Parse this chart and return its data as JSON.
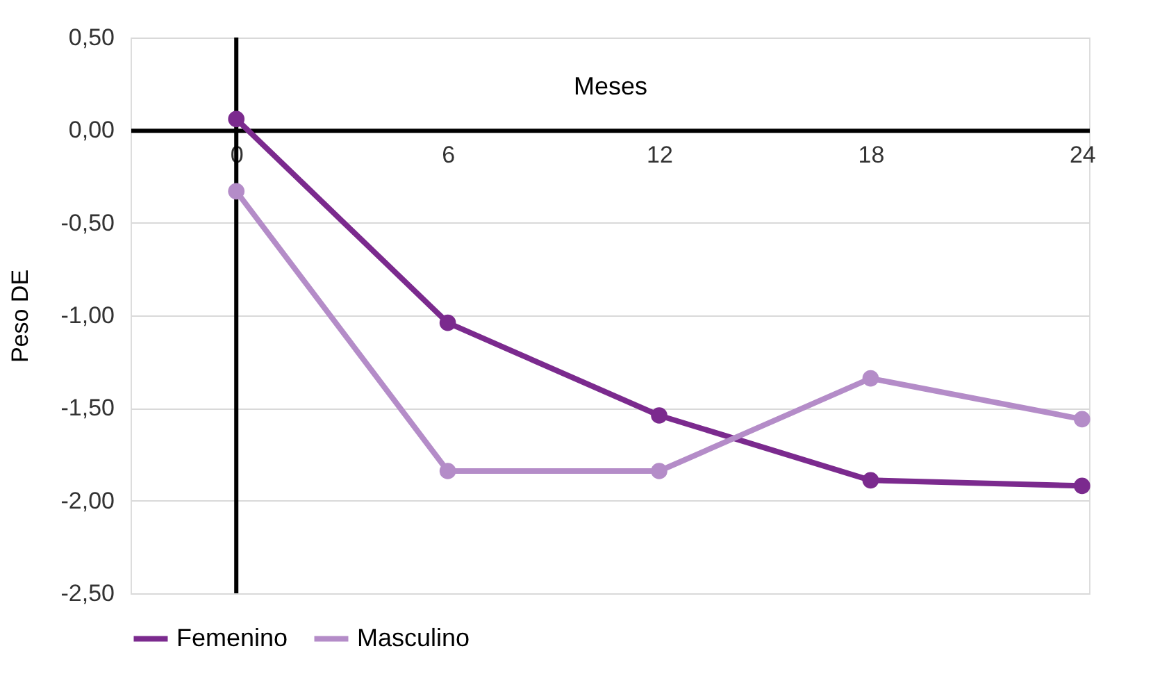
{
  "chart_data": {
    "type": "line",
    "xlabel": "Meses",
    "ylabel": "Peso DE",
    "x": [
      0,
      6,
      12,
      18,
      24
    ],
    "xlim": [
      -3,
      24.2
    ],
    "xticks": [
      0,
      6,
      12,
      18,
      24
    ],
    "ylim": [
      -2.5,
      0.5
    ],
    "yticks": [
      {
        "value": 0.5,
        "label": "0,50"
      },
      {
        "value": 0,
        "label": "0,00"
      },
      {
        "value": -0.5,
        "label": "-0,50"
      },
      {
        "value": -1,
        "label": "-1,00"
      },
      {
        "value": -1.5,
        "label": "-1,50"
      },
      {
        "value": -2,
        "label": "-2,00"
      },
      {
        "value": -2.5,
        "label": "-2,50"
      }
    ],
    "series": [
      {
        "name": "Femenino",
        "color": "#7b2a8e",
        "values": [
          0.06,
          -1.04,
          -1.54,
          -1.89,
          -1.92
        ]
      },
      {
        "name": "Masculino",
        "color": "#b48cc8",
        "values": [
          -0.33,
          -1.84,
          -1.84,
          -1.34,
          -1.56
        ]
      }
    ],
    "grid": "y",
    "legend": "bottom",
    "marker": "circle",
    "line_style": "solid"
  }
}
